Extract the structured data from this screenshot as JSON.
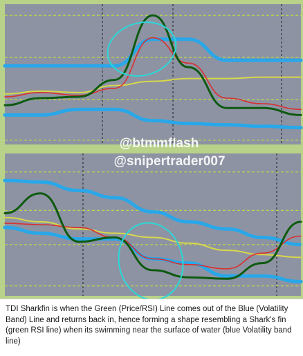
{
  "watermarks": [
    "@btmmflash",
    "@snipertrader007"
  ],
  "caption": "TDI Sharkfin is when the Green (Price/RSI) Line comes out of the Blue (Volatility Band) Line and returns back in, hence forming a shape resembling a Shark's fin (green RSI line) when its swimming near the surface of water (blue Volatility band line)",
  "colors": {
    "panel_bg": "#8e93a3",
    "outer_bg": "#b9d28a",
    "level_dashes": "#b6d84a",
    "vertical_dashes": "#1f1f1f",
    "green_line": "#0d5a10",
    "red_line": "#d93030",
    "yellow_line": "#d8d84a",
    "blue_band": "#29a7e8",
    "highlight": "#2ad8d8",
    "watermark": "#ffffff"
  },
  "chart_data": [
    {
      "type": "line",
      "panel": "top",
      "x": [
        0,
        12,
        25,
        37,
        50,
        62,
        75,
        87,
        100
      ],
      "ylim": [
        0,
        100
      ],
      "series": [
        {
          "values": [
            28,
            33,
            34,
            46,
            92,
            55,
            26,
            26,
            21
          ],
          "color": "green"
        },
        {
          "values": [
            34,
            37,
            35,
            40,
            76,
            58,
            33,
            29,
            25
          ],
          "color": "red"
        },
        {
          "values": [
            36,
            38,
            37,
            42,
            45,
            47,
            47,
            48,
            48
          ],
          "color": "yellow"
        },
        {
          "values": [
            56,
            56,
            56,
            56,
            75,
            75,
            60,
            60,
            60
          ],
          "color": "blue"
        },
        {
          "values": [
            21,
            21,
            25,
            25,
            17,
            15,
            14,
            13,
            12
          ],
          "color": "blue"
        }
      ]
    },
    {
      "type": "line",
      "panel": "bottom",
      "x": [
        0,
        12,
        25,
        37,
        50,
        62,
        75,
        87,
        100
      ],
      "ylim": [
        0,
        100
      ],
      "series": [
        {
          "values": [
            58,
            72,
            38,
            41,
            18,
            13,
            12,
            23,
            52
          ],
          "color": "green"
        },
        {
          "values": [
            51,
            50,
            48,
            41,
            26,
            22,
            19,
            30,
            42
          ],
          "color": "red"
        },
        {
          "values": [
            55,
            52,
            47,
            44,
            41,
            37,
            32,
            29,
            27
          ],
          "color": "yellow"
        },
        {
          "values": [
            81,
            80,
            74,
            69,
            59,
            52,
            47,
            41,
            36
          ],
          "color": "blue"
        },
        {
          "values": [
            48,
            44,
            40,
            40,
            26,
            23,
            14,
            14,
            10
          ],
          "color": "blue"
        }
      ]
    }
  ]
}
